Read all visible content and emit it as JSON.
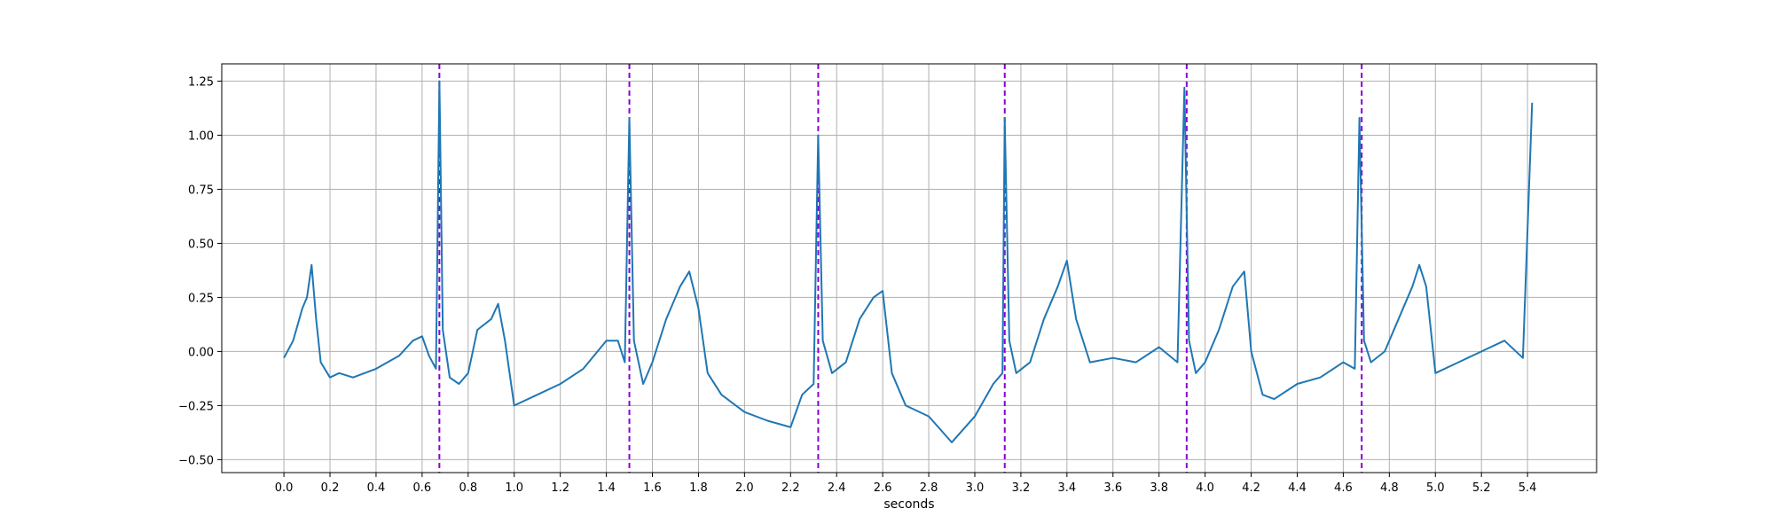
{
  "chart_data": {
    "type": "line",
    "title": "",
    "xlabel": "seconds",
    "ylabel": "",
    "xlim": [
      -0.27,
      5.7
    ],
    "ylim": [
      -0.56,
      1.33
    ],
    "grid": true,
    "xticks": [
      0.0,
      0.2,
      0.4,
      0.6,
      0.8,
      1.0,
      1.2,
      1.4,
      1.6,
      1.8,
      2.0,
      2.2,
      2.4,
      2.6,
      2.8,
      3.0,
      3.2,
      3.4,
      3.6,
      3.8,
      4.0,
      4.2,
      4.4,
      4.6,
      4.8,
      5.0,
      5.2,
      5.4
    ],
    "xtick_labels": [
      "0.0",
      "0.2",
      "0.4",
      "0.6",
      "0.8",
      "1.0",
      "1.2",
      "1.4",
      "1.6",
      "1.8",
      "2.0",
      "2.2",
      "2.4",
      "2.6",
      "2.8",
      "3.0",
      "3.2",
      "3.4",
      "3.6",
      "3.8",
      "4.0",
      "4.2",
      "4.4",
      "4.6",
      "4.8",
      "5.0",
      "5.2",
      "5.4"
    ],
    "yticks": [
      -0.5,
      -0.25,
      0.0,
      0.25,
      0.5,
      0.75,
      1.0,
      1.25
    ],
    "ytick_labels": [
      "−0.50",
      "−0.25",
      "0.00",
      "0.25",
      "0.50",
      "0.75",
      "1.00",
      "1.25"
    ],
    "series": [
      {
        "color": "#1f77b4",
        "x": [
          0.0,
          0.04,
          0.08,
          0.1,
          0.12,
          0.14,
          0.16,
          0.2,
          0.24,
          0.3,
          0.4,
          0.5,
          0.56,
          0.6,
          0.63,
          0.66,
          0.675,
          0.69,
          0.72,
          0.76,
          0.8,
          0.84,
          0.9,
          0.93,
          0.96,
          1.0,
          1.1,
          1.2,
          1.3,
          1.4,
          1.45,
          1.48,
          1.5,
          1.52,
          1.56,
          1.6,
          1.66,
          1.72,
          1.76,
          1.8,
          1.84,
          1.9,
          2.0,
          2.1,
          2.2,
          2.25,
          2.3,
          2.32,
          2.34,
          2.38,
          2.44,
          2.5,
          2.56,
          2.6,
          2.64,
          2.7,
          2.8,
          2.9,
          3.0,
          3.08,
          3.12,
          3.13,
          3.15,
          3.18,
          3.24,
          3.3,
          3.36,
          3.4,
          3.44,
          3.5,
          3.6,
          3.7,
          3.8,
          3.88,
          3.91,
          3.93,
          3.96,
          4.0,
          4.06,
          4.12,
          4.17,
          4.2,
          4.25,
          4.3,
          4.4,
          4.5,
          4.6,
          4.65,
          4.67,
          4.69,
          4.72,
          4.78,
          4.84,
          4.9,
          4.93,
          4.96,
          5.0,
          5.1,
          5.2,
          5.3,
          5.38,
          5.42
        ],
        "y": [
          -0.03,
          0.05,
          0.2,
          0.25,
          0.4,
          0.15,
          -0.05,
          -0.12,
          -0.1,
          -0.12,
          -0.08,
          -0.02,
          0.05,
          0.07,
          -0.02,
          -0.08,
          1.25,
          0.1,
          -0.12,
          -0.15,
          -0.1,
          0.1,
          0.15,
          0.22,
          0.05,
          -0.25,
          -0.2,
          -0.15,
          -0.08,
          0.05,
          0.05,
          -0.05,
          1.08,
          0.05,
          -0.15,
          -0.05,
          0.15,
          0.3,
          0.37,
          0.2,
          -0.1,
          -0.2,
          -0.28,
          -0.32,
          -0.35,
          -0.2,
          -0.15,
          1.0,
          0.05,
          -0.1,
          -0.05,
          0.15,
          0.25,
          0.28,
          -0.1,
          -0.25,
          -0.3,
          -0.42,
          -0.3,
          -0.15,
          -0.1,
          1.08,
          0.05,
          -0.1,
          -0.05,
          0.15,
          0.3,
          0.42,
          0.15,
          -0.05,
          -0.03,
          -0.05,
          0.02,
          -0.05,
          1.22,
          0.05,
          -0.1,
          -0.05,
          0.1,
          0.3,
          0.37,
          0.0,
          -0.2,
          -0.22,
          -0.15,
          -0.12,
          -0.05,
          -0.08,
          1.08,
          0.05,
          -0.05,
          0.0,
          0.15,
          0.3,
          0.4,
          0.3,
          -0.1,
          -0.05,
          0.0,
          0.05,
          -0.03,
          1.15
        ]
      }
    ],
    "vlines": {
      "color": "#8b00d6",
      "style": "dashed",
      "x": [
        0.675,
        1.5,
        2.32,
        3.13,
        3.92,
        4.68
      ]
    }
  }
}
